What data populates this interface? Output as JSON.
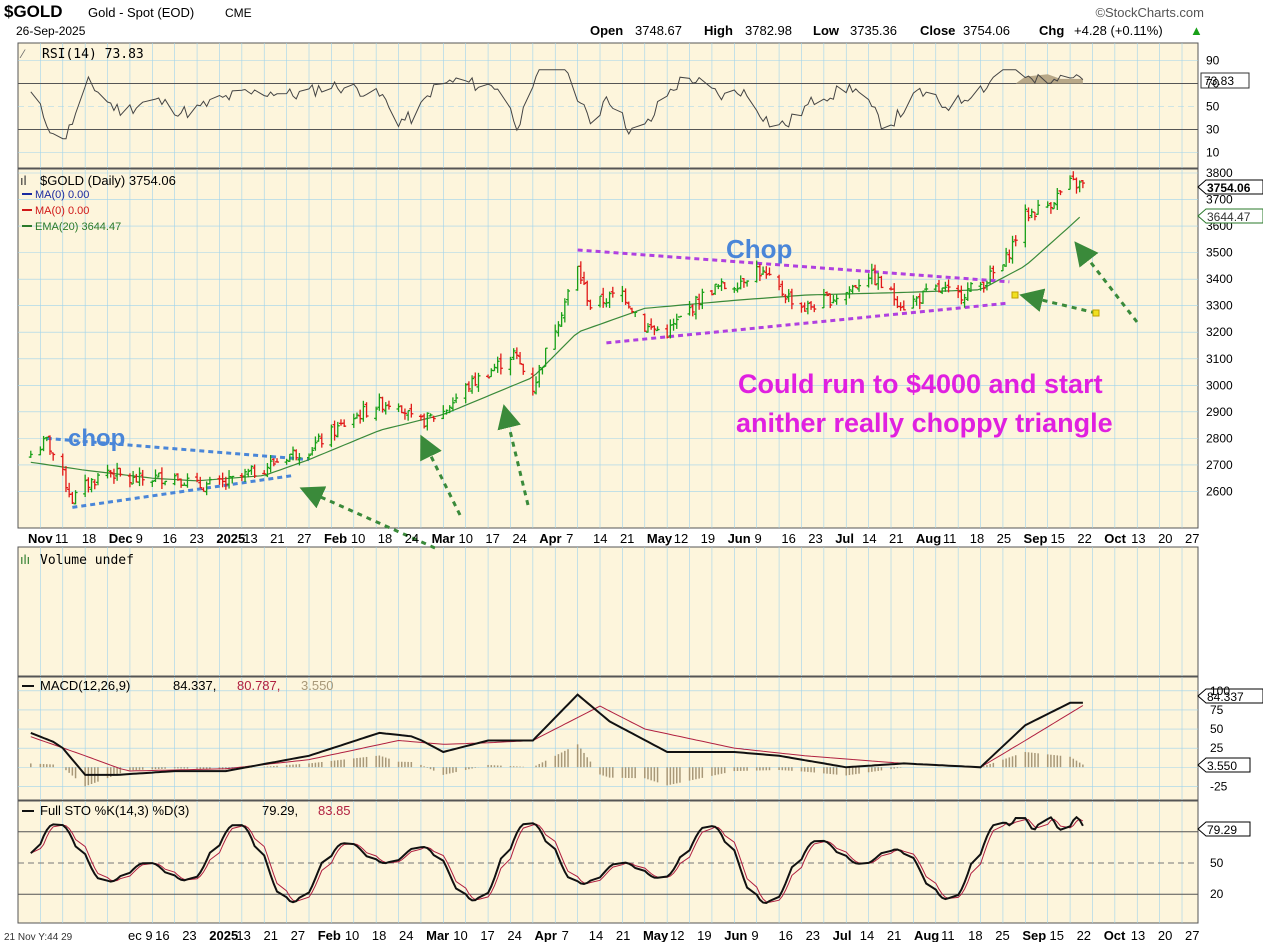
{
  "header": {
    "symbol": "$GOLD",
    "name": "Gold - Spot (EOD)",
    "exchange": "CME",
    "date": "26-Sep-2025",
    "brand": "©StockCharts.com",
    "open_label": "Open",
    "open": "3748.67",
    "high_label": "High",
    "high": "3782.98",
    "low_label": "Low",
    "low": "3735.36",
    "close_label": "Close",
    "close": "3754.06",
    "chg_label": "Chg",
    "chg": "+4.28 (+0.11%)",
    "chg_arrow": "▲"
  },
  "colors": {
    "background": "#fdf5dc",
    "grid": "#9fd3ec",
    "up_candle": "#18a018",
    "down_candle": "#e01818",
    "ema": "#3a8a3a",
    "chop_lower": "#4a86d8",
    "chop_upper": "#b040e0",
    "annotation": "#e020e0",
    "arrow": "#3a8a3a",
    "macd": "#111111",
    "signal": "#b02040",
    "histogram": "#a89878"
  },
  "rsi_panel": {
    "legend": "RSI(14) 73.83",
    "value_label": "73.83",
    "ticks": [
      "90",
      "70",
      "50",
      "30",
      "10"
    ]
  },
  "price_panel": {
    "legend_main": "$GOLD (Daily) 3754.06",
    "legend_ma1": "MA(0) 0.00",
    "legend_ma2": "MA(0) 0.00",
    "legend_ema": "EMA(20) 3644.47",
    "last_price_label": "3754.06",
    "ema_label": "3644.47",
    "annotation_chop_left": "chop",
    "annotation_chop_right": "Chop",
    "annotation_text_line1": "Could run to $4000 and start",
    "annotation_text_line2": "anither really choppy triangle"
  },
  "time_axis": {
    "labels": [
      "Nov",
      "11",
      "18",
      "Dec",
      "9",
      "16",
      "23",
      "2025",
      "13",
      "21",
      "27",
      "Feb",
      "10",
      "18",
      "24",
      "Mar",
      "10",
      "17",
      "24",
      "Apr",
      "7",
      "14",
      "21",
      "May",
      "12",
      "19",
      "Jun",
      "9",
      "16",
      "23",
      "Jul",
      "14",
      "21",
      "Aug",
      "11",
      "18",
      "25",
      "Sep",
      "15",
      "22",
      "Oct",
      "13",
      "20",
      "27"
    ]
  },
  "volume_panel": {
    "legend": "Volume undef"
  },
  "macd_panel": {
    "legend_prefix": "MACD(12,26,9)",
    "macd_value": "84.337,",
    "signal_value": "80.787,",
    "hist_value": "3.550",
    "macd_label": "84.337",
    "hist_label": "3.550",
    "ticks": [
      "100",
      "75",
      "50",
      "25",
      "-25"
    ]
  },
  "sto_panel": {
    "legend_prefix": "Full STO %K(14,3) %D(3)",
    "k_value": "79.29,",
    "d_value": "83.85",
    "k_label": "79.29",
    "ticks": [
      "50",
      "20"
    ]
  },
  "bottom_axis": {
    "left_label": "21 Nov Y:44 29",
    "labels": [
      "ec 9",
      "16",
      "23",
      "2025",
      "13",
      "21",
      "27",
      "Feb",
      "10",
      "18",
      "24",
      "Mar",
      "10",
      "17",
      "24",
      "Apr",
      "7",
      "14",
      "21",
      "May",
      "12",
      "19",
      "Jun",
      "9",
      "16",
      "23",
      "Jul",
      "14",
      "21",
      "Aug",
      "11",
      "18",
      "25",
      "Sep",
      "15",
      "22",
      "Oct",
      "13",
      "20",
      "27"
    ]
  },
  "chart_data": {
    "type": "candlestick",
    "title": "$GOLD Gold - Spot (EOD) CME",
    "ylim": [
      2500,
      3800
    ],
    "y_ticks": [
      2600,
      2700,
      2800,
      2900,
      3000,
      3100,
      3200,
      3300,
      3400,
      3500,
      3600,
      3700,
      3800
    ],
    "close_path": [
      [
        "2024-11-01",
        2740
      ],
      [
        "2024-11-06",
        2790
      ],
      [
        "2024-11-10",
        2690
      ],
      [
        "2024-11-14",
        2570
      ],
      [
        "2024-11-18",
        2620
      ],
      [
        "2024-11-25",
        2680
      ],
      [
        "2024-12-02",
        2640
      ],
      [
        "2024-12-09",
        2650
      ],
      [
        "2024-12-16",
        2660
      ],
      [
        "2024-12-23",
        2620
      ],
      [
        "2025-01-01",
        2630
      ],
      [
        "2025-01-13",
        2690
      ],
      [
        "2025-01-21",
        2740
      ],
      [
        "2025-01-27",
        2760
      ],
      [
        "2025-02-10",
        2880
      ],
      [
        "2025-02-18",
        2930
      ],
      [
        "2025-02-24",
        2940
      ],
      [
        "2025-03-01",
        2850
      ],
      [
        "2025-03-10",
        2900
      ],
      [
        "2025-03-17",
        2990
      ],
      [
        "2025-03-24",
        3050
      ],
      [
        "2025-04-01",
        3120
      ],
      [
        "2025-04-07",
        2990
      ],
      [
        "2025-04-14",
        3220
      ],
      [
        "2025-04-21",
        3440
      ],
      [
        "2025-04-25",
        3300
      ],
      [
        "2025-05-05",
        3350
      ],
      [
        "2025-05-12",
        3220
      ],
      [
        "2025-05-19",
        3200
      ],
      [
        "2025-06-01",
        3360
      ],
      [
        "2025-06-09",
        3380
      ],
      [
        "2025-06-16",
        3440
      ],
      [
        "2025-06-23",
        3360
      ],
      [
        "2025-07-01",
        3290
      ],
      [
        "2025-07-14",
        3350
      ],
      [
        "2025-07-21",
        3420
      ],
      [
        "2025-08-01",
        3300
      ],
      [
        "2025-08-11",
        3360
      ],
      [
        "2025-08-18",
        3340
      ],
      [
        "2025-08-25",
        3380
      ],
      [
        "2025-09-01",
        3450
      ],
      [
        "2025-09-08",
        3640
      ],
      [
        "2025-09-15",
        3680
      ],
      [
        "2025-09-22",
        3760
      ],
      [
        "2025-09-26",
        3754.06
      ]
    ],
    "ema20_path": [
      [
        "2024-11-01",
        2710
      ],
      [
        "2024-11-18",
        2680
      ],
      [
        "2024-12-09",
        2650
      ],
      [
        "2024-12-23",
        2640
      ],
      [
        "2025-01-13",
        2660
      ],
      [
        "2025-01-27",
        2720
      ],
      [
        "2025-02-18",
        2830
      ],
      [
        "2025-03-10",
        2890
      ],
      [
        "2025-03-24",
        2960
      ],
      [
        "2025-04-07",
        3030
      ],
      [
        "2025-04-21",
        3200
      ],
      [
        "2025-05-12",
        3290
      ],
      [
        "2025-06-09",
        3320
      ],
      [
        "2025-07-01",
        3340
      ],
      [
        "2025-08-01",
        3350
      ],
      [
        "2025-08-25",
        3360
      ],
      [
        "2025-09-08",
        3450
      ],
      [
        "2025-09-22",
        3600
      ],
      [
        "2025-09-26",
        3644.47
      ]
    ],
    "last": {
      "open": 3748.67,
      "high": 3782.98,
      "low": 3735.36,
      "close": 3754.06,
      "change": 4.28,
      "change_pct": 0.11
    },
    "ema20_last": 3644.47,
    "rsi_last": 73.83,
    "macd_last": {
      "macd": 84.337,
      "signal": 80.787,
      "histogram": 3.55
    },
    "sto_last": {
      "k": 79.29,
      "d": 83.85
    }
  }
}
